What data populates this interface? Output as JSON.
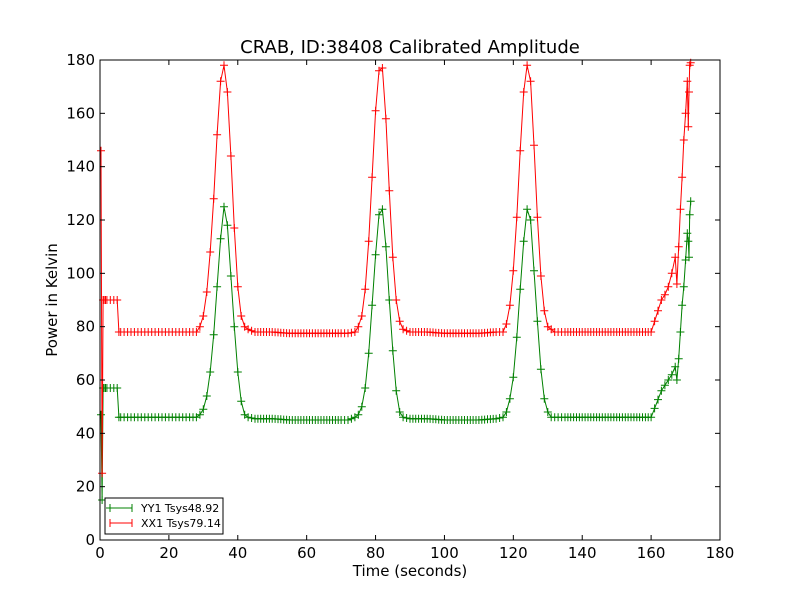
{
  "chart_data": {
    "type": "line",
    "title": "CRAB, ID:38408 Calibrated Amplitude",
    "xlabel": "Time (seconds)",
    "ylabel": "Power in Kelvin",
    "xlim": [
      0,
      180
    ],
    "ylim": [
      0,
      180
    ],
    "xticks": [
      0,
      20,
      40,
      60,
      80,
      100,
      120,
      140,
      160,
      180
    ],
    "yticks": [
      0,
      20,
      40,
      60,
      80,
      100,
      120,
      140,
      160,
      180
    ],
    "grid": false,
    "legend_position": "lower-left",
    "marker": "+",
    "series": [
      {
        "name": "YY1 Tsys48.92",
        "color": "#008000",
        "baseline": 45.5,
        "x": [
          0.3,
          0.6,
          0.9,
          1.2,
          1.6,
          2.0,
          3.0,
          4.0,
          5.0,
          5.5,
          6.0,
          7.0,
          8.0,
          10,
          12,
          14,
          16,
          18,
          20,
          22,
          24,
          26,
          27,
          28,
          29,
          30,
          31,
          32,
          33,
          34,
          35,
          36,
          37,
          38,
          39,
          40,
          41,
          42,
          43,
          45,
          50,
          55,
          60,
          65,
          70,
          72,
          74,
          75,
          76,
          77,
          78,
          79,
          80,
          81,
          82,
          83,
          84,
          85,
          86,
          87,
          88,
          90,
          95,
          100,
          105,
          110,
          115,
          117,
          118,
          119,
          120,
          121,
          122,
          123,
          124,
          125,
          126,
          127,
          128,
          129,
          130,
          131,
          132,
          133,
          135,
          140,
          145,
          150,
          155,
          160,
          163,
          164,
          165,
          166,
          167,
          167.5,
          168,
          168.5,
          169,
          169.5,
          170,
          170.5,
          170.8,
          171,
          171.2,
          171.5
        ],
        "values": [
          47,
          15,
          57,
          57,
          57,
          57,
          57,
          57,
          57,
          46,
          46,
          46,
          46,
          46,
          46,
          46,
          46,
          46,
          46,
          46,
          46,
          46,
          46,
          46,
          47,
          49,
          54,
          63,
          77,
          95,
          113,
          125,
          118,
          99,
          80,
          63,
          52,
          47,
          46,
          45.5,
          45.5,
          45,
          45,
          45,
          45,
          45,
          46,
          47,
          50,
          57,
          70,
          88,
          107,
          122,
          124,
          110,
          90,
          71,
          56,
          48,
          46,
          45.5,
          45.5,
          45,
          45,
          45,
          45.5,
          46,
          48,
          53,
          61,
          76,
          94,
          112,
          124,
          120,
          101,
          82,
          64,
          53,
          48,
          46,
          46,
          46,
          46,
          46,
          46,
          46,
          46,
          46,
          56,
          58,
          60,
          62,
          65,
          60,
          68,
          78,
          88,
          95,
          105,
          115,
          112,
          106,
          122,
          127
        ]
      },
      {
        "name": "XX1 Tsys79.14",
        "color": "#ff0000",
        "baseline": 78,
        "x": [
          0.3,
          0.6,
          0.9,
          1.2,
          1.6,
          2.0,
          3.0,
          4.0,
          5.0,
          5.5,
          6.0,
          7.0,
          8.0,
          10,
          12,
          14,
          16,
          18,
          20,
          22,
          24,
          26,
          27,
          28,
          29,
          30,
          31,
          32,
          33,
          34,
          35,
          36,
          37,
          38,
          39,
          40,
          41,
          42,
          43,
          45,
          50,
          55,
          60,
          65,
          70,
          72,
          74,
          75,
          76,
          77,
          78,
          79,
          80,
          81,
          82,
          83,
          84,
          85,
          86,
          87,
          88,
          90,
          95,
          100,
          105,
          110,
          115,
          117,
          118,
          119,
          120,
          121,
          122,
          123,
          124,
          125,
          126,
          127,
          128,
          129,
          130,
          131,
          132,
          133,
          135,
          140,
          145,
          150,
          155,
          160,
          163,
          164,
          165,
          166,
          167,
          167.5,
          168,
          168.5,
          169,
          169.5,
          170,
          170.5,
          170.8,
          171,
          171.2,
          171.5
        ],
        "values": [
          146,
          25,
          90,
          90,
          90,
          90,
          90,
          90,
          90,
          78,
          78,
          78,
          78,
          78,
          78,
          78,
          78,
          78,
          78,
          78,
          78,
          78,
          78,
          78,
          80,
          84,
          93,
          108,
          128,
          152,
          172,
          178,
          168,
          144,
          117,
          95,
          84,
          80,
          79,
          78,
          78,
          77.5,
          77.5,
          77.5,
          77.5,
          77.5,
          78,
          80,
          84,
          94,
          112,
          136,
          161,
          176,
          177,
          158,
          131,
          106,
          90,
          82,
          79,
          78,
          78,
          77.5,
          77.5,
          77.5,
          78,
          78,
          81,
          88,
          101,
          121,
          146,
          168,
          178,
          172,
          148,
          121,
          99,
          86,
          80,
          79,
          78,
          78,
          78,
          78,
          78,
          78,
          78,
          78,
          90,
          92,
          95,
          100,
          106,
          96,
          110,
          124,
          136,
          150,
          160,
          172,
          155,
          168,
          178,
          179
        ]
      }
    ]
  }
}
